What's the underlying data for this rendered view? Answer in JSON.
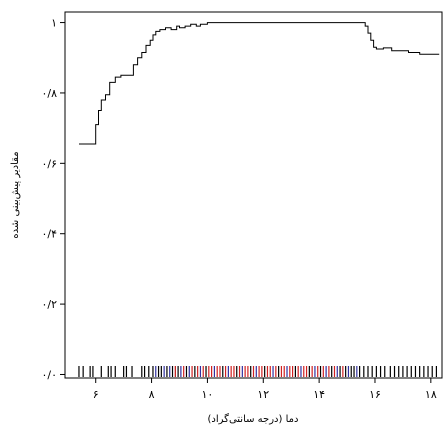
{
  "chart_data": {
    "type": "line",
    "title": "",
    "xlabel": "دما (درجه سانتی‌گراد)",
    "ylabel": "مقادیر پیش‌بینی شده",
    "xlim": [
      4.9,
      18.4
    ],
    "ylim": [
      -0.01,
      1.03
    ],
    "xticks": [
      6,
      8,
      10,
      12,
      14,
      16,
      18
    ],
    "xtick_labels": [
      "۶",
      "۸",
      "۱۰",
      "۱۲",
      "۱۴",
      "۱۶",
      "۱۸"
    ],
    "yticks": [
      0,
      0.2,
      0.4,
      0.6,
      0.8,
      1
    ],
    "ytick_labels": [
      "۰/۰",
      "۰/۲",
      "۰/۴",
      "۰/۶",
      "۰/۸",
      "۱"
    ],
    "grid": false,
    "legend": "none",
    "series": [
      {
        "x": [
          5.4,
          5.95,
          6.0,
          6.1,
          6.2,
          6.35,
          6.5,
          6.7,
          6.9,
          7.2,
          7.35,
          7.5,
          7.65,
          7.8,
          7.95,
          8.05,
          8.15,
          8.3,
          8.5,
          8.7,
          8.9,
          9.0,
          9.2,
          9.4,
          9.6,
          9.75,
          9.9,
          10.0,
          10.2,
          15.5,
          15.65,
          15.75,
          15.85,
          15.95,
          16.05,
          16.3,
          16.6,
          17.2,
          17.6,
          18.0,
          18.3
        ],
        "y": [
          0.655,
          0.655,
          0.71,
          0.75,
          0.78,
          0.795,
          0.83,
          0.845,
          0.85,
          0.85,
          0.88,
          0.9,
          0.915,
          0.935,
          0.95,
          0.965,
          0.975,
          0.98,
          0.985,
          0.98,
          0.99,
          0.985,
          0.99,
          0.995,
          0.99,
          0.995,
          0.995,
          1.0,
          1.0,
          1.0,
          0.99,
          0.97,
          0.95,
          0.93,
          0.925,
          0.928,
          0.92,
          0.915,
          0.91,
          0.91,
          0.91
        ],
        "color": "#000000"
      }
    ],
    "rug": {
      "x": [
        5.4,
        5.55,
        5.8,
        5.9,
        6.2,
        6.45,
        6.55,
        6.7,
        7.0,
        7.1,
        7.3,
        7.65,
        7.75,
        7.9,
        8.05,
        8.15,
        8.25,
        8.35,
        8.45,
        8.55,
        8.65,
        8.75,
        8.85,
        8.95,
        9.05,
        9.15,
        9.25,
        9.35,
        9.45,
        9.55,
        9.65,
        9.75,
        9.85,
        9.95,
        10.05,
        10.15,
        10.25,
        10.35,
        10.45,
        10.55,
        10.65,
        10.75,
        10.85,
        10.95,
        11.05,
        11.15,
        11.25,
        11.35,
        11.45,
        11.55,
        11.65,
        11.75,
        11.85,
        11.95,
        12.05,
        12.15,
        12.25,
        12.35,
        12.45,
        12.55,
        12.65,
        12.75,
        12.85,
        12.95,
        13.05,
        13.15,
        13.25,
        13.35,
        13.45,
        13.55,
        13.65,
        13.75,
        13.85,
        13.95,
        14.05,
        14.15,
        14.25,
        14.35,
        14.45,
        14.55,
        14.65,
        14.75,
        14.85,
        14.95,
        15.05,
        15.15,
        15.25,
        15.35,
        15.45,
        15.6,
        15.75,
        15.9,
        16.05,
        16.2,
        16.35,
        16.55,
        16.7,
        16.85,
        17.0,
        17.15,
        17.3,
        17.45,
        17.6,
        17.75,
        17.9,
        18.05,
        18.2
      ],
      "colors": [
        "#000000",
        "#000000",
        "#000000",
        "#000000",
        "#000000",
        "#000000",
        "#000000",
        "#000000",
        "#000000",
        "#000000",
        "#000000",
        "#000000",
        "#000000",
        "#000000",
        "#000000",
        "#3030a0",
        "#000000",
        "#000000",
        "#3030a0",
        "#000000",
        "#3030a0",
        "#000000",
        "#c01010",
        "#000000",
        "#3030a0",
        "#d02020",
        "#000000",
        "#3030a0",
        "#d02020",
        "#000000",
        "#d02020",
        "#3030a0",
        "#d02020",
        "#000000",
        "#d02020",
        "#d02020",
        "#3030a0",
        "#d02020",
        "#d02020",
        "#000000",
        "#d02020",
        "#3030a0",
        "#d02020",
        "#d02020",
        "#000000",
        "#d02020",
        "#3030a0",
        "#d02020",
        "#d02020",
        "#000000",
        "#d02020",
        "#3030a0",
        "#d02020",
        "#d02020",
        "#000000",
        "#d02020",
        "#d02020",
        "#3030a0",
        "#d02020",
        "#000000",
        "#d02020",
        "#d02020",
        "#3030a0",
        "#d02020",
        "#d02020",
        "#000000",
        "#d02020",
        "#3030a0",
        "#d02020",
        "#d02020",
        "#000000",
        "#d02020",
        "#3030a0",
        "#d02020",
        "#000000",
        "#d02020",
        "#3030a0",
        "#d02020",
        "#000000",
        "#d02020",
        "#3030a0",
        "#000000",
        "#d02020",
        "#000000",
        "#3030a0",
        "#000000",
        "#000000",
        "#3030a0",
        "#000000",
        "#000000",
        "#000000",
        "#000000",
        "#000000",
        "#000000",
        "#000000",
        "#000000",
        "#000000",
        "#000000",
        "#000000",
        "#000000",
        "#000000",
        "#000000",
        "#000000",
        "#000000",
        "#000000",
        "#000000",
        "#000000"
      ]
    }
  }
}
